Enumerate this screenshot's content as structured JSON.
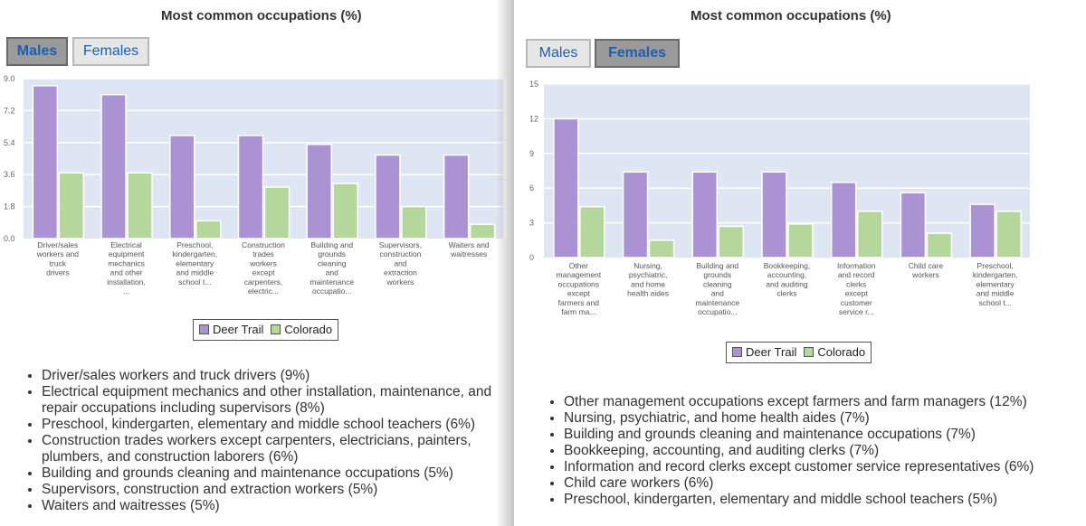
{
  "colors": {
    "deer_trail": "#ab92d2",
    "colorado": "#b5d79b",
    "plot_bg": "#dee6f3",
    "accent": "#1f5fb0"
  },
  "left": {
    "title": "Most common occupations (%)",
    "tabs": [
      {
        "label": "Males",
        "active": true
      },
      {
        "label": "Females",
        "active": false
      }
    ],
    "legend": [
      "Deer Trail",
      "Colorado"
    ],
    "list": [
      "Driver/sales workers and truck drivers (9%)",
      "Electrical equipment mechanics and other installation, maintenance, and repair occupations including supervisors (8%)",
      "Preschool, kindergarten, elementary and middle school teachers (6%)",
      "Construction trades workers except carpenters, electricians, painters, plumbers, and construction laborers (6%)",
      "Building and grounds cleaning and maintenance occupations (5%)",
      "Supervisors, construction and extraction workers (5%)",
      "Waiters and waitresses (5%)"
    ]
  },
  "right": {
    "title": "Most common occupations (%)",
    "tabs": [
      {
        "label": "Males",
        "active": false
      },
      {
        "label": "Females",
        "active": true
      }
    ],
    "legend": [
      "Deer Trail",
      "Colorado"
    ],
    "list": [
      "Other management occupations except farmers and farm managers (12%)",
      "Nursing, psychiatric, and home health aides (7%)",
      "Building and grounds cleaning and maintenance occupations (7%)",
      "Bookkeeping, accounting, and auditing clerks (7%)",
      "Information and record clerks except customer service representatives (6%)",
      "Child care workers (6%)",
      "Preschool, kindergarten, elementary and middle school teachers (5%)"
    ]
  },
  "chart_data": [
    {
      "type": "bar",
      "ylim": [
        0,
        9.0
      ],
      "yticks": [
        "0.0",
        "1.8",
        "3.6",
        "5.4",
        "7.2",
        "9.0"
      ],
      "categories": [
        [
          "Driver/sales",
          "workers and",
          "truck",
          "drivers"
        ],
        [
          "Electrical",
          "equipment",
          "mechanics",
          "and other",
          "installation,",
          "..."
        ],
        [
          "Preschool,",
          "kindergarten,",
          "elementary",
          "and middle",
          "school t..."
        ],
        [
          "Construction",
          "trades",
          "workers",
          "except",
          "carpenters,",
          "electric..."
        ],
        [
          "Building and",
          "grounds",
          "cleaning",
          "and",
          "maintenance",
          "occupatio..."
        ],
        [
          "Supervisors,",
          "construction",
          "and",
          "extraction",
          "workers"
        ],
        [
          "Waiters and",
          "waitresses"
        ]
      ],
      "series": [
        {
          "name": "Deer Trail",
          "values": [
            8.6,
            8.1,
            5.8,
            5.8,
            5.3,
            4.7,
            4.7
          ]
        },
        {
          "name": "Colorado",
          "values": [
            3.7,
            3.7,
            1.0,
            2.9,
            3.1,
            1.8,
            0.8
          ]
        }
      ],
      "legend": "bottom"
    },
    {
      "type": "bar",
      "ylim": [
        0,
        15
      ],
      "yticks": [
        "0",
        "3",
        "6",
        "9",
        "12",
        "15"
      ],
      "categories": [
        [
          "Other",
          "management",
          "occupations",
          "except",
          "farmers and",
          "farm ma..."
        ],
        [
          "Nursing,",
          "psychiatric,",
          "and home",
          "health aides"
        ],
        [
          "Building and",
          "grounds",
          "cleaning",
          "and",
          "maintenance",
          "occupatio..."
        ],
        [
          "Bookkeeping,",
          "accounting,",
          "and auditing",
          "clerks"
        ],
        [
          "Information",
          "and record",
          "clerks",
          "except",
          "customer",
          "service r..."
        ],
        [
          "Child care",
          "workers"
        ],
        [
          "Preschool,",
          "kindergarten,",
          "elementary",
          "and middle",
          "school t..."
        ]
      ],
      "series": [
        {
          "name": "Deer Trail",
          "values": [
            12.0,
            7.4,
            7.4,
            7.4,
            6.5,
            5.6,
            4.6
          ]
        },
        {
          "name": "Colorado",
          "values": [
            4.4,
            1.5,
            2.7,
            2.9,
            4.0,
            2.1,
            4.0
          ]
        }
      ],
      "legend": "bottom"
    }
  ]
}
